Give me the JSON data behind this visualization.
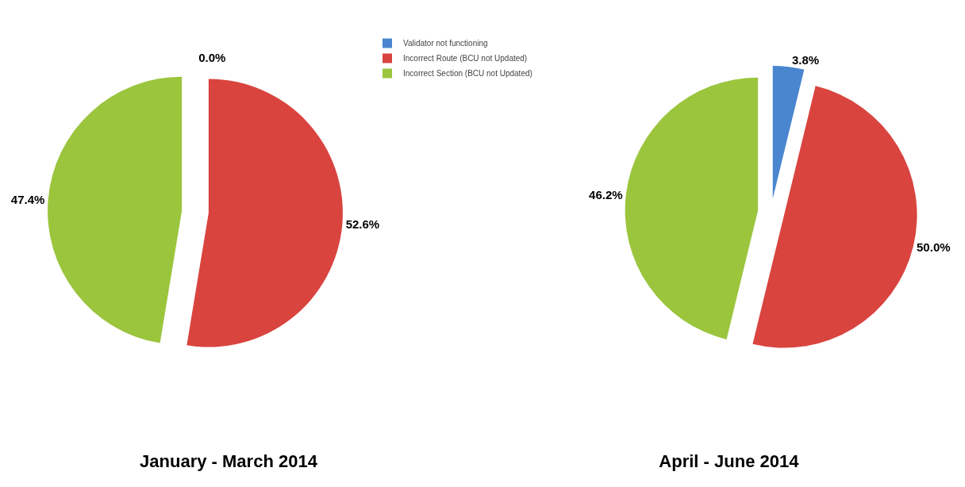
{
  "chart_data": [
    {
      "type": "pie",
      "title": "January - March 2014",
      "categories": [
        "Validator not functioning",
        "Incorrect Route (BCU not Updated)",
        "Incorrect Section (BCU not Updated)"
      ],
      "values": [
        0.0,
        52.6,
        47.4
      ],
      "value_labels": [
        "0.0%",
        "52.6%",
        "47.4%"
      ],
      "colors": [
        "#4a86d0",
        "#d9443f",
        "#9bc53d"
      ],
      "legend": "right"
    },
    {
      "type": "pie",
      "title": "April - June 2014",
      "categories": [
        null,
        null,
        null
      ],
      "values": [
        3.8,
        50.0,
        46.2
      ],
      "value_labels": [
        "3.8%",
        "50.0%",
        "46.2%"
      ],
      "colors": [
        "#4a86d0",
        "#d9443f",
        "#9bc53d"
      ],
      "legend": false
    }
  ]
}
